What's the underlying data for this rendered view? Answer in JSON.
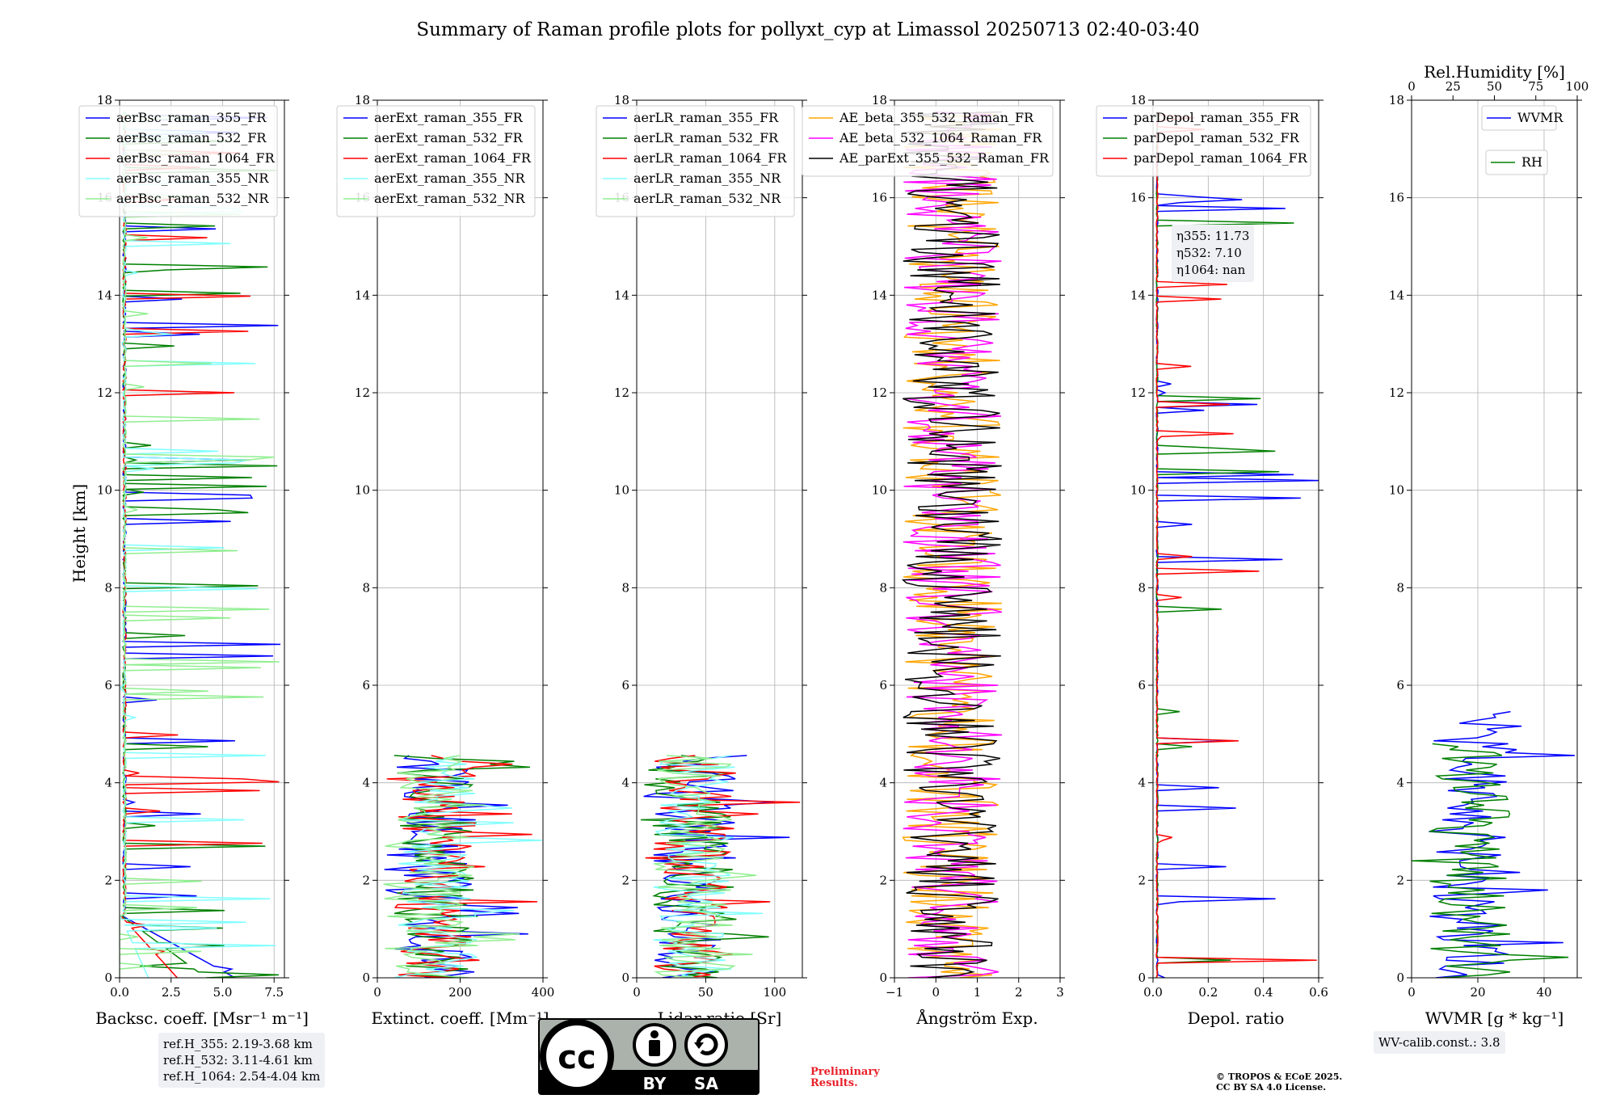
{
  "title": "Summary of Raman profile plots for pollyxt_cyp at Limassol 20250713 02:40-03:40",
  "ylabel": "Height [km]",
  "ref_box": [
    "ref.H_355: 2.19-3.68 km",
    "ref.H_532: 3.11-4.61 km",
    "ref.H_1064: 2.54-4.04 km"
  ],
  "eta_box": [
    "η355: 11.73",
    "η532: 7.10",
    "η1064: nan"
  ],
  "wv_box": "WV-calib.const.: 3.8",
  "preliminary": [
    "Preliminary",
    "Results."
  ],
  "copyright": [
    "© TROPOS & ECoE 2025.",
    "CC BY SA 4.0 License."
  ],
  "license_badge": {
    "top": "cc",
    "bottom_left": "BY",
    "bottom_right": "SA"
  },
  "chart_data": [
    {
      "type": "line",
      "panel": "backscatter",
      "xlabel": "Backsc. coeff. [Msr⁻¹ m⁻¹]",
      "ylabel": "Height [km]",
      "xlim": [
        0,
        8
      ],
      "ylim": [
        0,
        18
      ],
      "xticks": [
        "0.0",
        "2.5",
        "5.0",
        "7.5"
      ],
      "yticks": [
        "0",
        "2",
        "4",
        "6",
        "8",
        "10",
        "12",
        "14",
        "16",
        "18"
      ],
      "legend": [
        "aerBsc_raman_355_FR",
        "aerBsc_raman_532_FR",
        "aerBsc_raman_1064_FR",
        "aerBsc_raman_355_NR",
        "aerBsc_raman_532_NR"
      ],
      "colors": [
        "#0000ff",
        "#008000",
        "#ff0000",
        "#80ffff",
        "#90ee90"
      ]
    },
    {
      "type": "line",
      "panel": "extinction",
      "xlabel": "Extinct. coeff. [Mm⁻¹]",
      "xlim": [
        0,
        400
      ],
      "ylim": [
        0,
        18
      ],
      "xticks": [
        "0",
        "200",
        "400"
      ],
      "yticks": [
        "0",
        "2",
        "4",
        "6",
        "8",
        "10",
        "12",
        "14",
        "16",
        "18"
      ],
      "legend": [
        "aerExt_raman_355_FR",
        "aerExt_raman_532_FR",
        "aerExt_raman_1064_FR",
        "aerExt_raman_355_NR",
        "aerExt_raman_532_NR"
      ],
      "colors": [
        "#0000ff",
        "#008000",
        "#ff0000",
        "#80ffff",
        "#90ee90"
      ]
    },
    {
      "type": "line",
      "panel": "lidar_ratio",
      "xlabel": "Lidar ratio [Sr]",
      "xlim": [
        0,
        120
      ],
      "ylim": [
        0,
        18
      ],
      "xticks": [
        "0",
        "50",
        "100"
      ],
      "yticks": [
        "0",
        "2",
        "4",
        "6",
        "8",
        "10",
        "12",
        "14",
        "16",
        "18"
      ],
      "legend": [
        "aerLR_raman_355_FR",
        "aerLR_raman_532_FR",
        "aerLR_raman_1064_FR",
        "aerLR_raman_355_NR",
        "aerLR_raman_532_NR"
      ],
      "colors": [
        "#0000ff",
        "#008000",
        "#ff0000",
        "#80ffff",
        "#90ee90"
      ]
    },
    {
      "type": "line",
      "panel": "angstrom",
      "xlabel": "Ångström Exp.",
      "xlim": [
        -1,
        3
      ],
      "ylim": [
        0,
        18
      ],
      "xticks": [
        "−1",
        "0",
        "1",
        "2",
        "3"
      ],
      "yticks": [
        "0",
        "2",
        "4",
        "6",
        "8",
        "10",
        "12",
        "14",
        "16",
        "18"
      ],
      "legend": [
        "AE_beta_355_532_Raman_FR",
        "AE_beta_532_1064_Raman_FR",
        "AE_parExt_355_532_Raman_FR"
      ],
      "colors": [
        "#ffa500",
        "#ff00ff",
        "#000000"
      ]
    },
    {
      "type": "line",
      "panel": "depol",
      "xlabel": "Depol. ratio",
      "xlim": [
        0,
        0.6
      ],
      "ylim": [
        0,
        18
      ],
      "xticks": [
        "0.0",
        "0.2",
        "0.4",
        "0.6"
      ],
      "yticks": [
        "0",
        "2",
        "4",
        "6",
        "8",
        "10",
        "12",
        "14",
        "16",
        "18"
      ],
      "legend": [
        "parDepol_raman_355_FR",
        "parDepol_raman_532_FR",
        "parDepol_raman_1064_FR"
      ],
      "colors": [
        "#0000ff",
        "#008000",
        "#ff0000"
      ]
    },
    {
      "type": "line",
      "panel": "wvmr",
      "xlabel": "WVMR [g * kg⁻¹]",
      "xlim": [
        0,
        50
      ],
      "ylim": [
        0,
        18
      ],
      "xticks": [
        "0",
        "20",
        "40"
      ],
      "yticks": [
        "0",
        "2",
        "4",
        "6",
        "8",
        "10",
        "12",
        "14",
        "16",
        "18"
      ],
      "top_xlabel": "Rel.Humidity [%]",
      "top_xlim": [
        0,
        100
      ],
      "top_xticks": [
        "0",
        "25",
        "50",
        "75",
        "100"
      ],
      "legend": [
        "WVMR",
        "RH"
      ],
      "colors": [
        "#0000ff",
        "#008000"
      ]
    }
  ]
}
